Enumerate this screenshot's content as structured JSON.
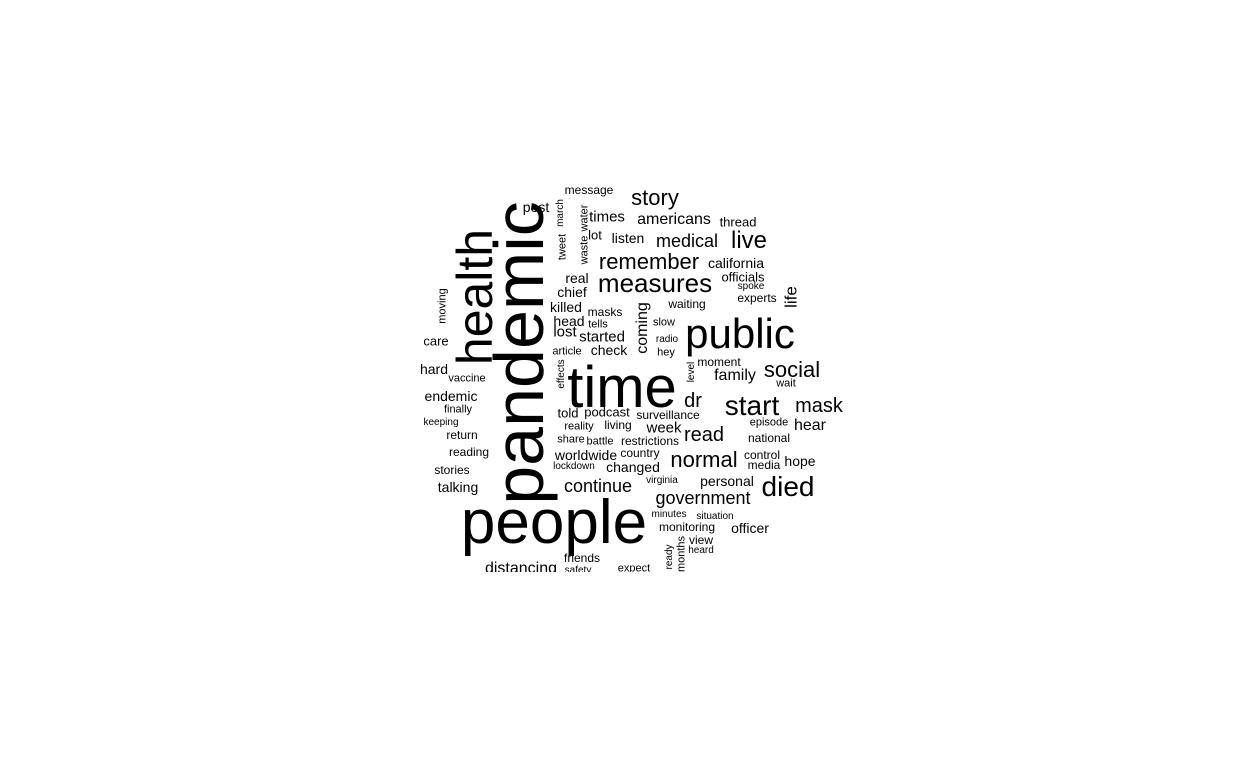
{
  "chart_data": {
    "type": "wordcloud",
    "words": [
      {
        "text": "pandemic",
        "weight": 100,
        "vertical": true
      },
      {
        "text": "people",
        "weight": 88,
        "vertical": false
      },
      {
        "text": "time",
        "weight": 84,
        "vertical": false
      },
      {
        "text": "health",
        "weight": 70,
        "vertical": true
      },
      {
        "text": "public",
        "weight": 60,
        "vertical": false
      },
      {
        "text": "measures",
        "weight": 42,
        "vertical": false
      },
      {
        "text": "start",
        "weight": 40,
        "vertical": false
      },
      {
        "text": "died",
        "weight": 38,
        "vertical": false
      },
      {
        "text": "remember",
        "weight": 34,
        "vertical": false
      },
      {
        "text": "live",
        "weight": 34,
        "vertical": false
      },
      {
        "text": "normal",
        "weight": 32,
        "vertical": false
      },
      {
        "text": "story",
        "weight": 32,
        "vertical": false
      },
      {
        "text": "social",
        "weight": 32,
        "vertical": false
      },
      {
        "text": "mask",
        "weight": 30,
        "vertical": false
      },
      {
        "text": "government",
        "weight": 30,
        "vertical": false
      },
      {
        "text": "continue",
        "weight": 30,
        "vertical": false
      },
      {
        "text": "medical",
        "weight": 30,
        "vertical": false
      },
      {
        "text": "dr",
        "weight": 30,
        "vertical": false
      },
      {
        "text": "read",
        "weight": 28,
        "vertical": false
      },
      {
        "text": "coming",
        "weight": 26,
        "vertical": true
      },
      {
        "text": "family",
        "weight": 26,
        "vertical": false
      },
      {
        "text": "americans",
        "weight": 24,
        "vertical": false
      },
      {
        "text": "hear",
        "weight": 24,
        "vertical": false
      },
      {
        "text": "life",
        "weight": 24,
        "vertical": true
      },
      {
        "text": "distancing",
        "weight": 24,
        "vertical": false
      },
      {
        "text": "california",
        "weight": 22,
        "vertical": false
      },
      {
        "text": "listen",
        "weight": 22,
        "vertical": false
      },
      {
        "text": "times",
        "weight": 22,
        "vertical": false
      },
      {
        "text": "started",
        "weight": 22,
        "vertical": false
      },
      {
        "text": "endemic",
        "weight": 20,
        "vertical": false
      },
      {
        "text": "week",
        "weight": 22,
        "vertical": false
      },
      {
        "text": "personal",
        "weight": 20,
        "vertical": false
      },
      {
        "text": "hope",
        "weight": 20,
        "vertical": false
      },
      {
        "text": "officer",
        "weight": 20,
        "vertical": false
      },
      {
        "text": "chief",
        "weight": 20,
        "vertical": false
      },
      {
        "text": "real",
        "weight": 20,
        "vertical": false
      },
      {
        "text": "lost",
        "weight": 20,
        "vertical": false
      },
      {
        "text": "killed",
        "weight": 20,
        "vertical": false
      },
      {
        "text": "head",
        "weight": 20,
        "vertical": false
      },
      {
        "text": "post",
        "weight": 20,
        "vertical": false
      },
      {
        "text": "lot",
        "weight": 20,
        "vertical": false
      },
      {
        "text": "worldwide",
        "weight": 20,
        "vertical": false
      },
      {
        "text": "changed",
        "weight": 20,
        "vertical": false
      },
      {
        "text": "check",
        "weight": 20,
        "vertical": false
      },
      {
        "text": "talking",
        "weight": 20,
        "vertical": false
      },
      {
        "text": "hard",
        "weight": 20,
        "vertical": false
      },
      {
        "text": "care",
        "weight": 20,
        "vertical": false
      },
      {
        "text": "thread",
        "weight": 18,
        "vertical": false
      },
      {
        "text": "officials",
        "weight": 18,
        "vertical": false
      },
      {
        "text": "waiting",
        "weight": 18,
        "vertical": false
      },
      {
        "text": "told",
        "weight": 18,
        "vertical": false
      },
      {
        "text": "podcast",
        "weight": 18,
        "vertical": false
      },
      {
        "text": "living",
        "weight": 18,
        "vertical": false
      },
      {
        "text": "country",
        "weight": 18,
        "vertical": false
      },
      {
        "text": "restrictions",
        "weight": 18,
        "vertical": false
      },
      {
        "text": "surveillance",
        "weight": 18,
        "vertical": false
      },
      {
        "text": "moment",
        "weight": 18,
        "vertical": false
      },
      {
        "text": "national",
        "weight": 18,
        "vertical": false
      },
      {
        "text": "experts",
        "weight": 18,
        "vertical": false
      },
      {
        "text": "media",
        "weight": 18,
        "vertical": false
      },
      {
        "text": "control",
        "weight": 18,
        "vertical": false
      },
      {
        "text": "monitoring",
        "weight": 18,
        "vertical": false
      },
      {
        "text": "view",
        "weight": 18,
        "vertical": false
      },
      {
        "text": "friends",
        "weight": 18,
        "vertical": false
      },
      {
        "text": "stories",
        "weight": 18,
        "vertical": false
      },
      {
        "text": "reading",
        "weight": 18,
        "vertical": false
      },
      {
        "text": "return",
        "weight": 18,
        "vertical": false
      },
      {
        "text": "vaccine",
        "weight": 18,
        "vertical": false
      },
      {
        "text": "message",
        "weight": 18,
        "vertical": false
      },
      {
        "text": "masks",
        "weight": 18,
        "vertical": false
      },
      {
        "text": "tells",
        "weight": 18,
        "vertical": false
      },
      {
        "text": "slow",
        "weight": 18,
        "vertical": false
      },
      {
        "text": "hey",
        "weight": 18,
        "vertical": false
      },
      {
        "text": "reality",
        "weight": 18,
        "vertical": false
      },
      {
        "text": "episode",
        "weight": 16,
        "vertical": false
      },
      {
        "text": "wait",
        "weight": 16,
        "vertical": false
      },
      {
        "text": "spoke",
        "weight": 16,
        "vertical": false
      },
      {
        "text": "finally",
        "weight": 16,
        "vertical": false
      },
      {
        "text": "article",
        "weight": 16,
        "vertical": false
      },
      {
        "text": "share",
        "weight": 16,
        "vertical": false
      },
      {
        "text": "battle",
        "weight": 16,
        "vertical": false
      },
      {
        "text": "lockdown",
        "weight": 16,
        "vertical": false
      },
      {
        "text": "keeping",
        "weight": 16,
        "vertical": false
      },
      {
        "text": "radio",
        "weight": 16,
        "vertical": false
      },
      {
        "text": "minutes",
        "weight": 16,
        "vertical": false
      },
      {
        "text": "situation",
        "weight": 16,
        "vertical": false
      },
      {
        "text": "heard",
        "weight": 16,
        "vertical": false
      },
      {
        "text": "virginia",
        "weight": 16,
        "vertical": false
      },
      {
        "text": "expect",
        "weight": 16,
        "vertical": false
      },
      {
        "text": "safety",
        "weight": 16,
        "vertical": false
      },
      {
        "text": "moving",
        "weight": 16,
        "vertical": true
      },
      {
        "text": "tweet",
        "weight": 16,
        "vertical": true
      },
      {
        "text": "march",
        "weight": 16,
        "vertical": true
      },
      {
        "text": "waste",
        "weight": 16,
        "vertical": true
      },
      {
        "text": "water",
        "weight": 16,
        "vertical": true
      },
      {
        "text": "effects",
        "weight": 16,
        "vertical": true
      },
      {
        "text": "level",
        "weight": 16,
        "vertical": true
      },
      {
        "text": "months",
        "weight": 16,
        "vertical": true
      },
      {
        "text": "ready",
        "weight": 16,
        "vertical": true
      }
    ]
  }
}
